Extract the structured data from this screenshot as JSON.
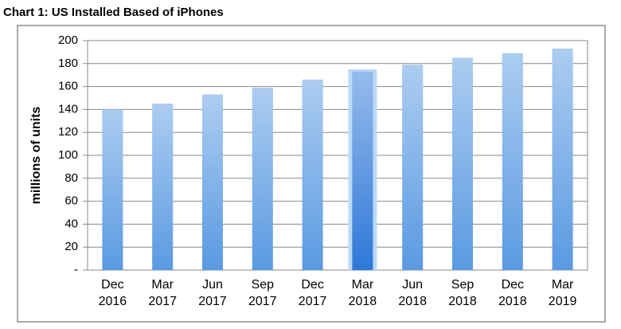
{
  "chart_data": {
    "type": "bar",
    "title": "Chart 1: US Installed Based of iPhones",
    "y_label": "millions of units",
    "categories": [
      "Dec 2016",
      "Mar 2017",
      "Jun 2017",
      "Sep 2017",
      "Dec 2017",
      "Mar 2018",
      "Jun 2018",
      "Sep 2018",
      "Dec 2018",
      "Mar 2019"
    ],
    "values": [
      140,
      145,
      153,
      159,
      166,
      173,
      179,
      185,
      189,
      193
    ],
    "colors": [
      "#5a9ae2",
      "#5a9ae2",
      "#5a9ae2",
      "#5a9ae2",
      "#5a9ae2",
      "#2f78d8",
      "#5a9ae2",
      "#5a9ae2",
      "#5a9ae2",
      "#5a9ae2"
    ],
    "ylim": [
      0,
      200
    ],
    "yticks": [
      {
        "value": 0,
        "label": "-"
      },
      20,
      40,
      60,
      80,
      100,
      120,
      140,
      160,
      180,
      200
    ],
    "grid": true
  }
}
